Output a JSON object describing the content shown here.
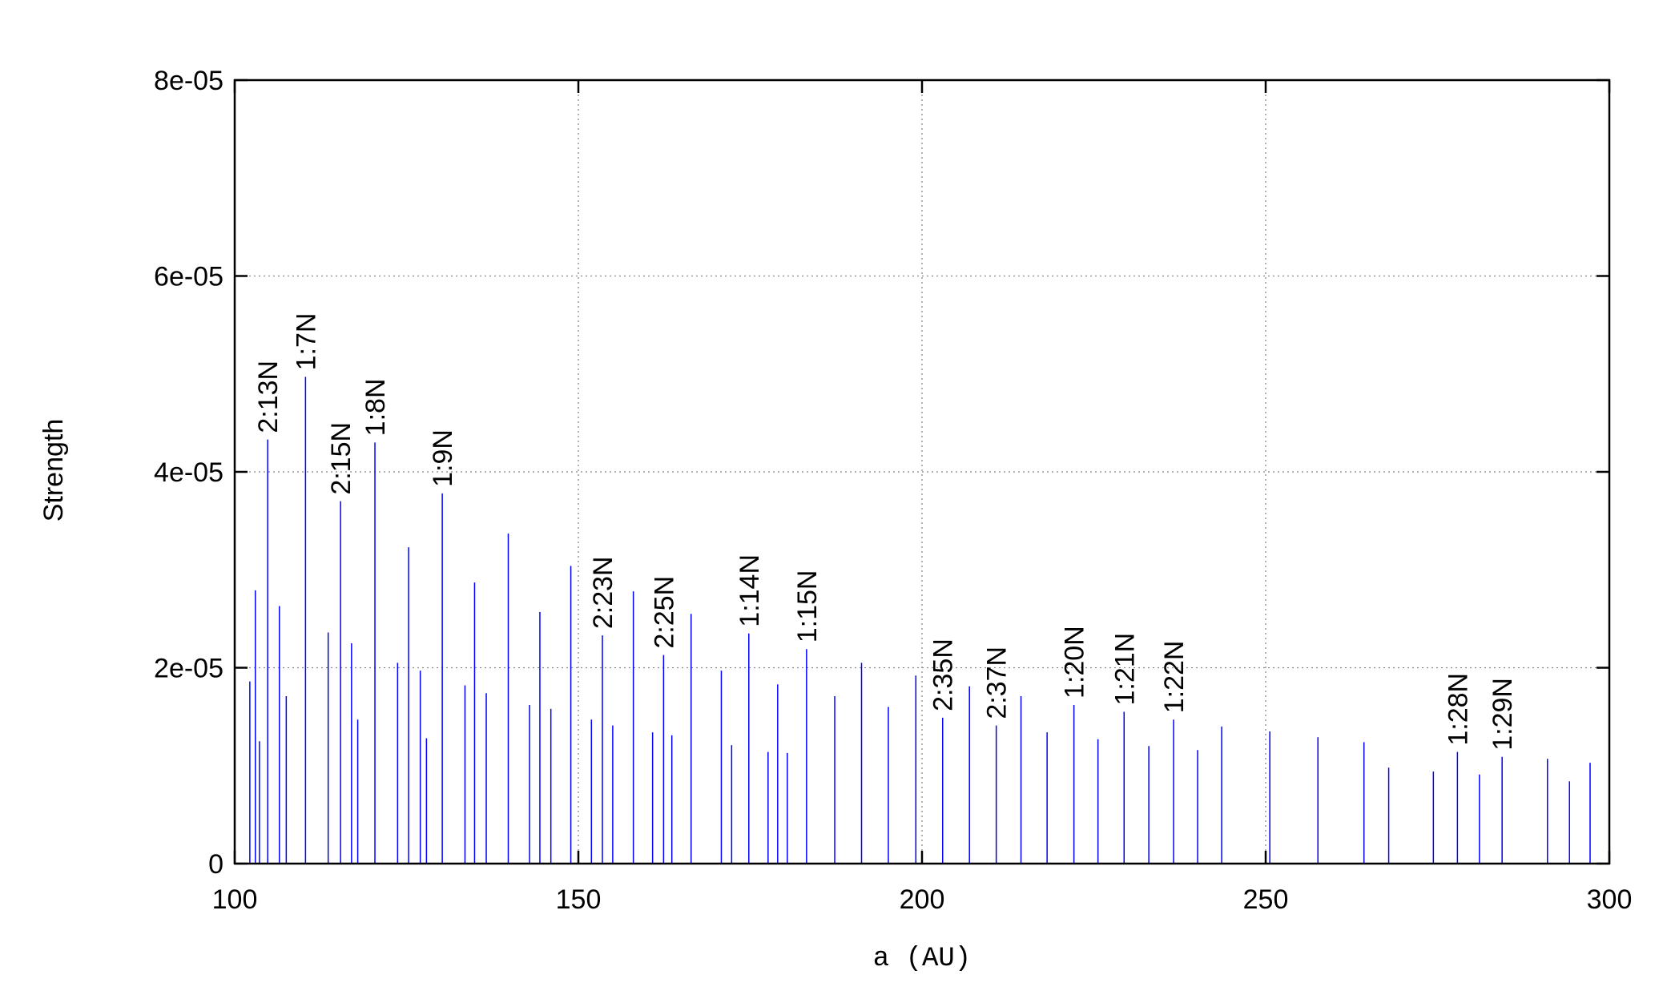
{
  "chart_data": {
    "type": "spike",
    "xlabel": "a (AU)",
    "ylabel": "Strength",
    "xlim": [
      100,
      300
    ],
    "xticks": [
      100,
      150,
      200,
      250,
      300
    ],
    "ylim": [
      0,
      8e-05
    ],
    "yticks": [
      0,
      {
        "value": 2e-05,
        "label": "2e-05"
      },
      {
        "value": 4e-05,
        "label": "4e-05"
      },
      {
        "value": 6e-05,
        "label": "6e-05"
      },
      {
        "value": 8e-05,
        "label": "8e-05"
      }
    ],
    "grid": true,
    "color": "#0000ff",
    "x": [
      102.2,
      103.0,
      103.6,
      104.8,
      106.5,
      107.5,
      110.3,
      113.6,
      115.4,
      117.0,
      117.9,
      120.4,
      123.7,
      125.3,
      127.0,
      127.9,
      130.2,
      133.5,
      134.9,
      136.6,
      139.8,
      142.9,
      144.4,
      146.0,
      148.9,
      151.9,
      153.5,
      155.0,
      158.0,
      160.8,
      162.4,
      163.6,
      166.4,
      170.8,
      172.3,
      174.8,
      177.6,
      179.0,
      180.4,
      183.2,
      187.3,
      191.2,
      195.1,
      199.1,
      203.0,
      206.9,
      210.8,
      214.4,
      218.2,
      222.1,
      225.6,
      229.4,
      233.0,
      236.6,
      240.1,
      243.6,
      250.6,
      257.6,
      264.3,
      267.9,
      274.4,
      277.9,
      281.1,
      284.4,
      291.0,
      294.2,
      297.2
    ],
    "values": [
      1.86e-05,
      2.79e-05,
      1.25e-05,
      4.33e-05,
      2.63e-05,
      1.71e-05,
      4.97e-05,
      2.36e-05,
      3.7e-05,
      2.25e-05,
      1.47e-05,
      4.3e-05,
      2.05e-05,
      3.23e-05,
      1.97e-05,
      1.28e-05,
      3.78e-05,
      1.82e-05,
      2.87e-05,
      1.74e-05,
      3.37e-05,
      1.62e-05,
      2.57e-05,
      1.58e-05,
      3.04e-05,
      1.47e-05,
      2.33e-05,
      1.41e-05,
      2.78e-05,
      1.34e-05,
      2.13e-05,
      1.31e-05,
      2.55e-05,
      1.97e-05,
      1.21e-05,
      2.35e-05,
      1.14e-05,
      1.83e-05,
      1.13e-05,
      2.19e-05,
      1.71e-05,
      2.05e-05,
      1.6e-05,
      1.92e-05,
      1.49e-05,
      1.81e-05,
      1.41e-05,
      1.71e-05,
      1.34e-05,
      1.62e-05,
      1.27e-05,
      1.55e-05,
      1.2e-05,
      1.47e-05,
      1.16e-05,
      1.4e-05,
      1.35e-05,
      1.29e-05,
      1.24e-05,
      9.8e-06,
      9.4e-06,
      1.14e-05,
      9.1e-06,
      1.09e-05,
      1.07e-05,
      8.4e-06,
      1.03e-05
    ],
    "point_labels": [
      null,
      null,
      null,
      "2:13N",
      null,
      null,
      "1:7N",
      null,
      "2:15N",
      null,
      null,
      "1:8N",
      null,
      null,
      null,
      null,
      "1:9N",
      null,
      null,
      null,
      null,
      null,
      null,
      null,
      null,
      null,
      "2:23N",
      null,
      null,
      null,
      "2:25N",
      null,
      null,
      null,
      null,
      "1:14N",
      null,
      null,
      null,
      "1:15N",
      null,
      null,
      null,
      null,
      "2:35N",
      null,
      "2:37N",
      null,
      null,
      "1:20N",
      null,
      "1:21N",
      null,
      "1:22N",
      null,
      null,
      null,
      null,
      null,
      null,
      null,
      "1:28N",
      null,
      "1:29N",
      null,
      null,
      null
    ]
  }
}
